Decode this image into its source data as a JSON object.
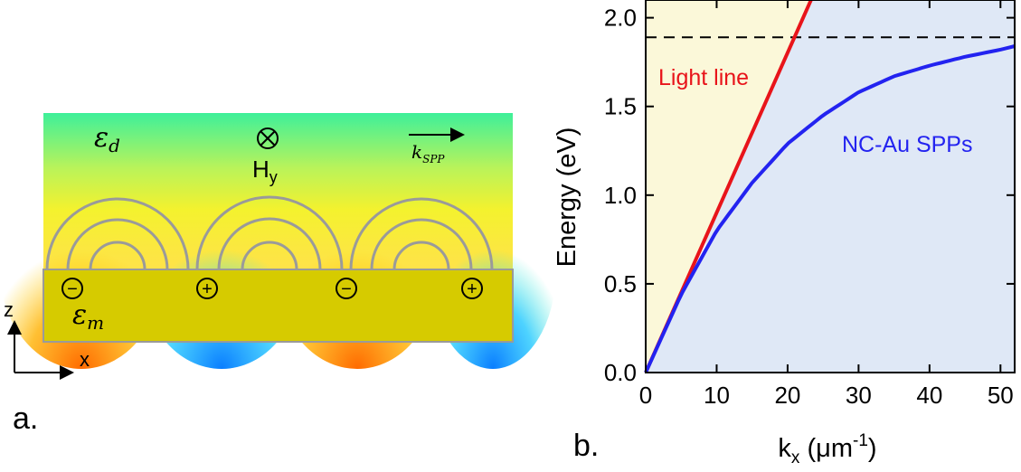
{
  "panel_a": {
    "panel_label": "a.",
    "eps_d": {
      "symbol": "ε",
      "sub": "d"
    },
    "eps_m": {
      "symbol": "ε",
      "sub": "m"
    },
    "field": {
      "symbol": "H",
      "sub": "y"
    },
    "k_spp": {
      "symbol": "k",
      "sub": "SPP"
    },
    "charges": [
      "−",
      "+",
      "−",
      "+"
    ],
    "axes": {
      "z": "z",
      "x": "x"
    },
    "colors": {
      "metal": "#d6cb00",
      "dielectric_top": "#3ef09a",
      "field_warm": "#ff8c00",
      "field_cold": "#1e9cff",
      "field_lines": "#9a9a9a"
    }
  },
  "chart_data": {
    "type": "line",
    "panel_label": "b.",
    "xlabel": {
      "base": "k",
      "sub": "x",
      "unit_open": " (μm",
      "sup": "-1",
      "unit_close": ")"
    },
    "ylabel": "Energy (eV)",
    "xlim": [
      0,
      52
    ],
    "ylim": [
      0,
      2.1
    ],
    "xticks": [
      0,
      10,
      20,
      30,
      40,
      50
    ],
    "xtick_labels": [
      "0",
      "10",
      "20",
      "30",
      "40",
      "50"
    ],
    "yticks": [
      0.0,
      0.5,
      1.0,
      1.5,
      2.0
    ],
    "ytick_labels": [
      "0.0",
      "0.5",
      "1.0",
      "1.5",
      "2.0"
    ],
    "grid": false,
    "dashed_line": {
      "y": 1.89,
      "color": "#000000"
    },
    "regions": [
      {
        "name": "left of light line",
        "color": "#fbf8d9"
      },
      {
        "name": "right of light line",
        "color": "#dfe8f6"
      }
    ],
    "series": [
      {
        "name": "Light line",
        "color": "#e8141a",
        "x": [
          0,
          23.3
        ],
        "y": [
          0,
          2.1
        ]
      },
      {
        "name": "NC-Au SPPs",
        "color": "#2323f0",
        "x": [
          0,
          5,
          10,
          15,
          20,
          25,
          30,
          35,
          40,
          45,
          50,
          52
        ],
        "y": [
          0,
          0.44,
          0.8,
          1.07,
          1.29,
          1.45,
          1.58,
          1.67,
          1.73,
          1.78,
          1.82,
          1.84
        ]
      }
    ]
  }
}
